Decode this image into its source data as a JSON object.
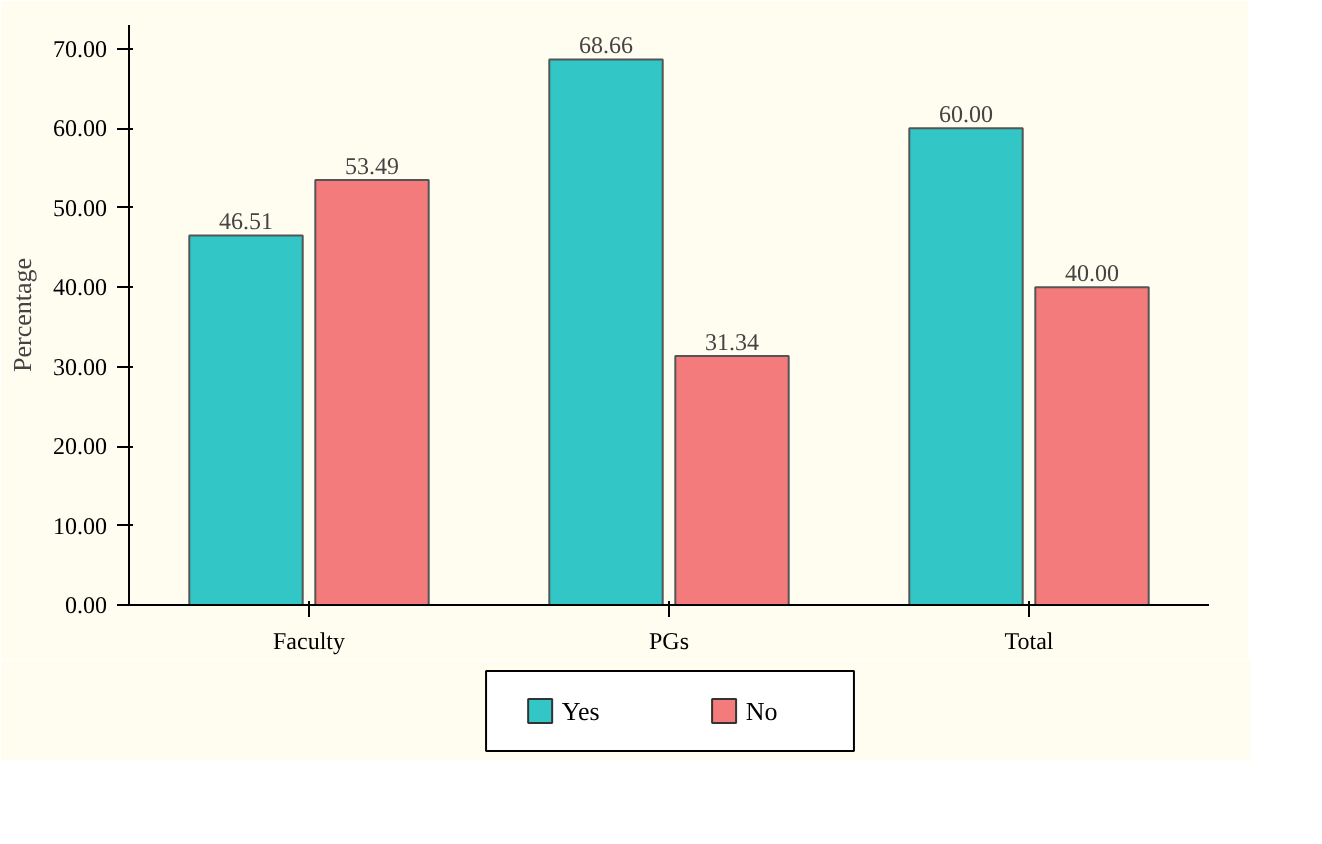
{
  "chart_data": {
    "type": "bar",
    "ylabel": "Percentage",
    "categories": [
      "Faculty",
      "PGs",
      "Total"
    ],
    "series": [
      {
        "name": "Yes",
        "color": "#33c6c6",
        "values": [
          46.51,
          68.66,
          60.0
        ],
        "value_labels": [
          "46.51",
          "68.66",
          "60.00"
        ]
      },
      {
        "name": "No",
        "color": "#f47b7b",
        "values": [
          53.49,
          31.34,
          40.0
        ],
        "value_labels": [
          "53.49",
          "31.34",
          "40.00"
        ]
      }
    ],
    "ylim": [
      0,
      73
    ],
    "yticks": [
      {
        "value": 0,
        "label": "0.00"
      },
      {
        "value": 10,
        "label": "10.00"
      },
      {
        "value": 20,
        "label": "20.00"
      },
      {
        "value": 30,
        "label": "30.00"
      },
      {
        "value": 40,
        "label": "40.00"
      },
      {
        "value": 50,
        "label": "50.00"
      },
      {
        "value": 60,
        "label": "60.00"
      },
      {
        "value": 70,
        "label": "70.00"
      }
    ],
    "grid": false,
    "legend": "bottom"
  }
}
